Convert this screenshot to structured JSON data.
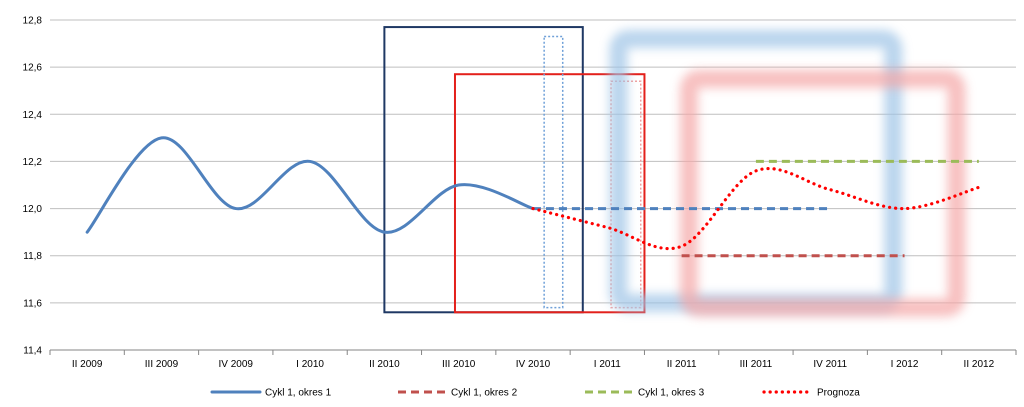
{
  "chart_data": {
    "type": "line",
    "categories": [
      "II 2009",
      "III 2009",
      "IV 2009",
      "I 2010",
      "II 2010",
      "III 2010",
      "IV 2010",
      "I 2011",
      "II 2011",
      "III 2011",
      "IV 2011",
      "I 2012",
      "II 2012"
    ],
    "ylim": [
      11.4,
      12.8
    ],
    "yticks": [
      "11,4",
      "11,6",
      "11,8",
      "12,0",
      "12,2",
      "12,4",
      "12,6",
      "12,8"
    ],
    "grid": true,
    "legend_position": "bottom",
    "series": [
      {
        "name": "Cykl 1, okres 1",
        "color": "#4F81BD",
        "style": "solid",
        "points": [
          [
            0,
            11.9
          ],
          [
            1,
            12.3
          ],
          [
            2,
            12.0
          ],
          [
            3,
            12.2
          ],
          [
            4,
            11.9
          ],
          [
            5,
            12.1
          ],
          [
            6,
            12.0
          ]
        ]
      },
      {
        "name": "Cykl 1, okres 2",
        "color": "#4F81BD",
        "style": "dash",
        "points": [
          [
            6,
            12.0
          ],
          [
            7,
            12.0
          ],
          [
            8,
            12.0
          ],
          [
            9,
            12.0
          ],
          [
            10,
            12.0
          ]
        ]
      },
      {
        "name": "Cykl 1, okres 2",
        "color": "#C0504D",
        "style": "dash",
        "points": [
          [
            8,
            11.8
          ],
          [
            9,
            11.8
          ],
          [
            10,
            11.8
          ],
          [
            11,
            11.8
          ]
        ]
      },
      {
        "name": "Cykl 1, okres 3",
        "color": "#9BBB59",
        "style": "dash",
        "points": [
          [
            9,
            12.2
          ],
          [
            10,
            12.2
          ],
          [
            11,
            12.2
          ],
          [
            12,
            12.2
          ]
        ]
      },
      {
        "name": "Prognoza",
        "color": "#FF0000",
        "style": "dot",
        "points": [
          [
            6,
            12.0
          ],
          [
            7,
            11.92
          ],
          [
            8,
            11.84
          ],
          [
            9,
            12.16
          ],
          [
            10,
            12.08
          ],
          [
            11,
            12.0
          ],
          [
            12,
            12.09
          ]
        ]
      }
    ],
    "overlay_rects": [
      {
        "name": "rect-navy",
        "x0": 4.0,
        "x1": 6.67,
        "y0": 11.56,
        "y1": 12.77,
        "color": "#1F3864",
        "style": "solid"
      },
      {
        "name": "rect-red",
        "x0": 4.95,
        "x1": 7.5,
        "y0": 11.56,
        "y1": 12.57,
        "color": "#E3201B",
        "style": "solid"
      },
      {
        "name": "rect-blue-dotted",
        "x0": 6.15,
        "x1": 6.4,
        "y0": 11.58,
        "y1": 12.73,
        "color": "#6FA0D8",
        "style": "dotted"
      },
      {
        "name": "rect-red-dotted",
        "x0": 7.05,
        "x1": 7.45,
        "y0": 11.58,
        "y1": 12.54,
        "color": "#F0A0A0",
        "style": "dotted"
      },
      {
        "name": "rect-blue-blur",
        "x0": 7.15,
        "x1": 10.85,
        "y0": 11.6,
        "y1": 12.72,
        "color": "#9DC3E6",
        "style": "blur"
      },
      {
        "name": "rect-red-blur",
        "x0": 8.1,
        "x1": 11.7,
        "y0": 11.58,
        "y1": 12.55,
        "color": "#F4A6A6",
        "style": "blur"
      }
    ],
    "legend": [
      {
        "label": "Cykl 1, okres 1",
        "color": "#4F81BD",
        "style": "solid"
      },
      {
        "label": "Cykl 1, okres 2",
        "color": "#C0504D",
        "style": "dash"
      },
      {
        "label": "Cykl 1, okres 3",
        "color": "#9BBB59",
        "style": "dash"
      },
      {
        "label": "Prognoza",
        "color": "#FF0000",
        "style": "dot"
      }
    ]
  }
}
